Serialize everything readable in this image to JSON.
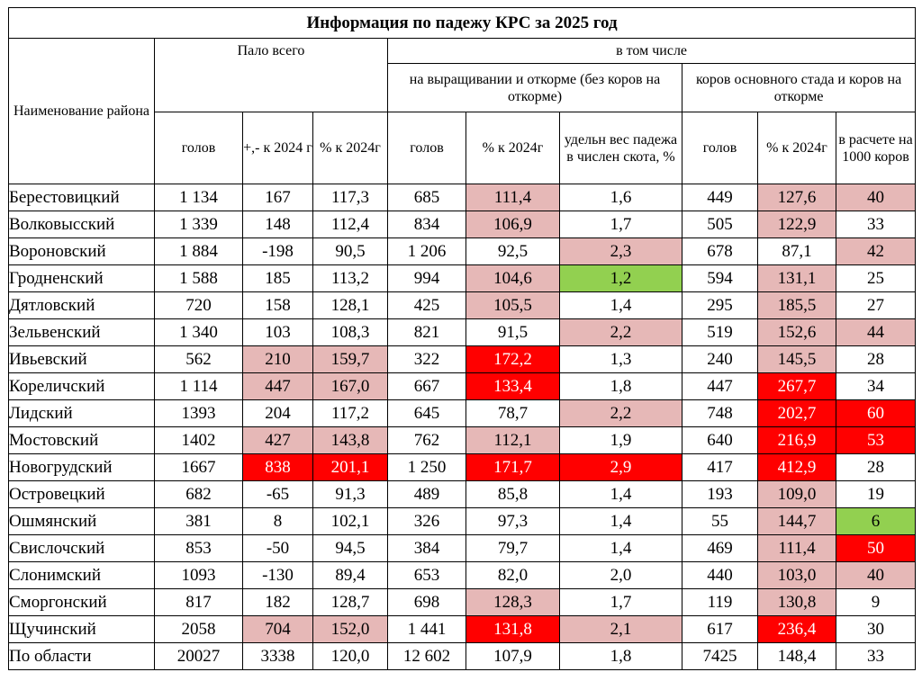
{
  "title": "Информация по падежу КРС за 2025 год",
  "header": {
    "district": "Наименование района",
    "fell_total": "Пало всего",
    "including": "в том числе",
    "fattening": "на выращивании и откорме (без коров на откорме)",
    "cows": "коров основного стада и коров на откорме",
    "cols": [
      "голов",
      "+,- к 2024 г",
      "% к 2024г",
      "голов",
      "% к 2024г",
      "удельн вес падежа в числен скота, %",
      "голов",
      "% к 2024г",
      "в расчете на 1000 коров"
    ]
  },
  "colors": {
    "light_pink": "#e6b8b7",
    "red": "#ff0000",
    "green": "#92d050"
  },
  "rows": [
    {
      "name": "Берестовицкий",
      "cells": [
        {
          "v": "1 134"
        },
        {
          "v": "167"
        },
        {
          "v": "117,3"
        },
        {
          "v": "685"
        },
        {
          "v": "111,4",
          "s": "lp",
          "b": true
        },
        {
          "v": "1,6"
        },
        {
          "v": "449"
        },
        {
          "v": "127,6",
          "s": "lp",
          "b": true
        },
        {
          "v": "40",
          "s": "lp",
          "b": true
        }
      ]
    },
    {
      "name": "Волковысский",
      "cells": [
        {
          "v": "1 339"
        },
        {
          "v": "148"
        },
        {
          "v": "112,4"
        },
        {
          "v": "834"
        },
        {
          "v": "106,9",
          "s": "lp",
          "b": true
        },
        {
          "v": "1,7"
        },
        {
          "v": "505"
        },
        {
          "v": "122,9",
          "s": "lp",
          "b": true
        },
        {
          "v": "33"
        }
      ]
    },
    {
      "name": "Вороновский",
      "cells": [
        {
          "v": "1 884"
        },
        {
          "v": "-198"
        },
        {
          "v": "90,5"
        },
        {
          "v": "1 206"
        },
        {
          "v": "92,5"
        },
        {
          "v": "2,3",
          "s": "lp",
          "b": true
        },
        {
          "v": "678"
        },
        {
          "v": "87,1"
        },
        {
          "v": "42",
          "s": "lp",
          "b": true
        }
      ]
    },
    {
      "name": "Гродненский",
      "cells": [
        {
          "v": "1 588"
        },
        {
          "v": "185"
        },
        {
          "v": "113,2"
        },
        {
          "v": "994"
        },
        {
          "v": "104,6",
          "s": "lp",
          "b": true
        },
        {
          "v": "1,2",
          "s": "gr",
          "b": true
        },
        {
          "v": "594"
        },
        {
          "v": "131,1",
          "s": "lp",
          "b": true
        },
        {
          "v": "25"
        }
      ]
    },
    {
      "name": "Дятловский",
      "cells": [
        {
          "v": "720"
        },
        {
          "v": "158"
        },
        {
          "v": "128,1"
        },
        {
          "v": "425"
        },
        {
          "v": "105,5",
          "s": "lp",
          "b": true
        },
        {
          "v": "1,4"
        },
        {
          "v": "295"
        },
        {
          "v": "185,5",
          "s": "lp",
          "b": true
        },
        {
          "v": "27"
        }
      ]
    },
    {
      "name": "Зельвенский",
      "cells": [
        {
          "v": "1 340"
        },
        {
          "v": "103"
        },
        {
          "v": "108,3"
        },
        {
          "v": "821"
        },
        {
          "v": "91,5"
        },
        {
          "v": "2,2",
          "s": "lp",
          "b": true
        },
        {
          "v": "519"
        },
        {
          "v": "152,6",
          "s": "lp",
          "b": true
        },
        {
          "v": "44",
          "s": "lp",
          "b": true
        }
      ]
    },
    {
      "name": "Ивьевский",
      "cells": [
        {
          "v": "562"
        },
        {
          "v": "210",
          "s": "lp",
          "b": true
        },
        {
          "v": "159,7",
          "s": "lp",
          "b": true
        },
        {
          "v": "322"
        },
        {
          "v": "172,2",
          "s": "rd",
          "b": true
        },
        {
          "v": "1,3"
        },
        {
          "v": "240"
        },
        {
          "v": "145,5",
          "s": "lp",
          "b": true
        },
        {
          "v": "28"
        }
      ]
    },
    {
      "name": "Кореличский",
      "cells": [
        {
          "v": "1 114"
        },
        {
          "v": "447",
          "s": "lp",
          "b": true
        },
        {
          "v": "167,0",
          "s": "lp",
          "b": true
        },
        {
          "v": "667"
        },
        {
          "v": "133,4",
          "s": "rd",
          "b": true
        },
        {
          "v": "1,8"
        },
        {
          "v": "447"
        },
        {
          "v": "267,7",
          "s": "rd",
          "b": true
        },
        {
          "v": "34"
        }
      ]
    },
    {
      "name": "Лидский",
      "cells": [
        {
          "v": "1393"
        },
        {
          "v": "204"
        },
        {
          "v": "117,2"
        },
        {
          "v": "645"
        },
        {
          "v": "78,7"
        },
        {
          "v": "2,2",
          "s": "lp",
          "b": true
        },
        {
          "v": "748"
        },
        {
          "v": "202,7",
          "s": "rd",
          "b": true
        },
        {
          "v": "60",
          "s": "rd",
          "b": true
        }
      ]
    },
    {
      "name": "Мостовский",
      "cells": [
        {
          "v": "1402"
        },
        {
          "v": "427",
          "s": "lp",
          "b": true
        },
        {
          "v": "143,8",
          "s": "lp",
          "b": true
        },
        {
          "v": "762"
        },
        {
          "v": "112,1",
          "s": "lp",
          "b": true
        },
        {
          "v": "1,9"
        },
        {
          "v": "640"
        },
        {
          "v": "216,9",
          "s": "rd",
          "b": true
        },
        {
          "v": "53",
          "s": "rd",
          "b": true
        }
      ]
    },
    {
      "name": "Новогрудский",
      "cells": [
        {
          "v": "1667"
        },
        {
          "v": "838",
          "s": "rd",
          "b": true
        },
        {
          "v": "201,1",
          "s": "rd",
          "b": true
        },
        {
          "v": "1 250"
        },
        {
          "v": "171,7",
          "s": "rd",
          "b": true
        },
        {
          "v": "2,9",
          "s": "rd",
          "b": true
        },
        {
          "v": "417"
        },
        {
          "v": "412,9",
          "s": "rd",
          "b": true
        },
        {
          "v": "28"
        }
      ]
    },
    {
      "name": "Островецкий",
      "cells": [
        {
          "v": "682"
        },
        {
          "v": "-65"
        },
        {
          "v": "91,3"
        },
        {
          "v": "489"
        },
        {
          "v": "85,8"
        },
        {
          "v": "1,4"
        },
        {
          "v": "193"
        },
        {
          "v": "109,0",
          "s": "lp",
          "b": true
        },
        {
          "v": "19"
        }
      ]
    },
    {
      "name": "Ошмянский",
      "cells": [
        {
          "v": "381"
        },
        {
          "v": "8"
        },
        {
          "v": "102,1"
        },
        {
          "v": "326"
        },
        {
          "v": "97,3"
        },
        {
          "v": "1,4"
        },
        {
          "v": "55"
        },
        {
          "v": "144,7",
          "s": "lp",
          "b": true
        },
        {
          "v": "6",
          "s": "gr",
          "b": true
        }
      ]
    },
    {
      "name": "Свислочский",
      "cells": [
        {
          "v": "853"
        },
        {
          "v": "-50"
        },
        {
          "v": "94,5"
        },
        {
          "v": "384"
        },
        {
          "v": "79,7"
        },
        {
          "v": "1,4"
        },
        {
          "v": "469"
        },
        {
          "v": "111,4",
          "s": "lp",
          "b": true
        },
        {
          "v": "50",
          "s": "rd",
          "b": true
        }
      ]
    },
    {
      "name": "Слонимский",
      "cells": [
        {
          "v": "1093"
        },
        {
          "v": "-130"
        },
        {
          "v": "89,4"
        },
        {
          "v": "653"
        },
        {
          "v": "82,0"
        },
        {
          "v": "2,0"
        },
        {
          "v": "440"
        },
        {
          "v": "103,0",
          "s": "lp",
          "b": true
        },
        {
          "v": "40",
          "s": "lp",
          "b": true
        }
      ]
    },
    {
      "name": "Сморгонский",
      "cells": [
        {
          "v": "817"
        },
        {
          "v": "182"
        },
        {
          "v": "128,7"
        },
        {
          "v": "698"
        },
        {
          "v": "128,3",
          "s": "lp",
          "b": true
        },
        {
          "v": "1,7"
        },
        {
          "v": "119"
        },
        {
          "v": "130,8",
          "s": "lp",
          "b": true
        },
        {
          "v": "9"
        }
      ]
    },
    {
      "name": "Щучинский",
      "cells": [
        {
          "v": "2058"
        },
        {
          "v": "704",
          "s": "lp",
          "b": true
        },
        {
          "v": "152,0",
          "s": "lp",
          "b": true
        },
        {
          "v": "1 441"
        },
        {
          "v": "131,8",
          "s": "rd",
          "b": true
        },
        {
          "v": "2,1",
          "s": "lp",
          "b": true
        },
        {
          "v": "617"
        },
        {
          "v": "236,4",
          "s": "rd",
          "b": true
        },
        {
          "v": "30"
        }
      ]
    }
  ],
  "total": {
    "name": "По области",
    "cells": [
      {
        "v": "20027"
      },
      {
        "v": "3338"
      },
      {
        "v": "120,0"
      },
      {
        "v": "12 602"
      },
      {
        "v": "107,9"
      },
      {
        "v": "1,8"
      },
      {
        "v": "7425"
      },
      {
        "v": "148,4"
      },
      {
        "v": "33"
      }
    ]
  }
}
